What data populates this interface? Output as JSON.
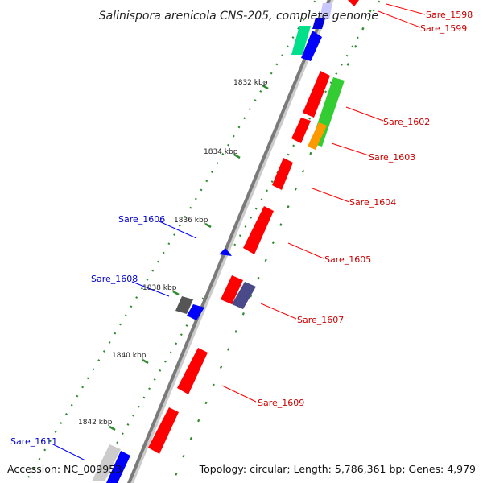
{
  "title": "Salinispora arenicola CNS-205, complete genome",
  "accession": "Accession: NC_009953",
  "summary": "Topology: circular; Length: 5,786,361 bp; Genes: 4,979",
  "scale_labels": [
    "1832 kbp",
    "1834 kbp",
    "1836 kbp",
    "1838 kbp",
    "1840 kbp",
    "1842 kbp"
  ],
  "gene_labels": {
    "sare_1598": "Sare_1598",
    "sare_1599": "Sare_1599",
    "sare_1602": "Sare_1602",
    "sare_1603": "Sare_1603",
    "sare_1604": "Sare_1604",
    "sare_1605": "Sare_1605",
    "sare_1606": "Sare_1606",
    "sare_1607": "Sare_1607",
    "sare_1608": "Sare_1608",
    "sare_1609": "Sare_1609",
    "sare_1611": "Sare_1611"
  },
  "colors": {
    "backbone": "#888888",
    "forward_gene": "#ff0000",
    "reverse_gene": "#0000ff",
    "rna_gene": "#00e08a",
    "green_feature": "#33cc33",
    "orange_feature": "#ff9900",
    "dark_feature": "#4a4a8a",
    "gray_feature": "#555555",
    "dots": "#2e8b2e"
  }
}
